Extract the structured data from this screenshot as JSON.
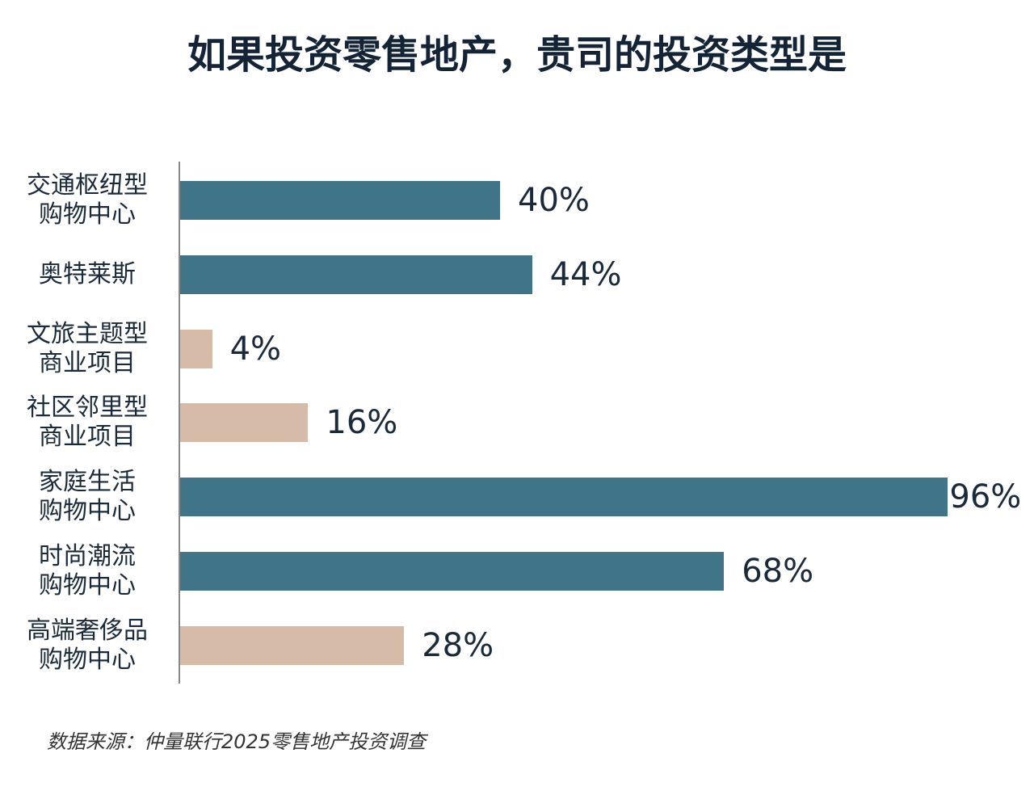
{
  "chart_data": {
    "type": "bar",
    "orientation": "horizontal",
    "title": "如果投资零售地产，贵司的投资类型是",
    "categories": [
      "交通枢纽型\n购物中心",
      "奥特莱斯",
      "文旅主题型\n商业项目",
      "社区邻里型\n商业项目",
      "家庭生活\n购物中心",
      "时尚潮流\n购物中心",
      "高端奢侈品\n购物中心"
    ],
    "values": [
      40,
      44,
      4,
      16,
      96,
      68,
      28
    ],
    "value_labels": [
      "40%",
      "44%",
      "4%",
      "16%",
      "96%",
      "68%",
      "28%"
    ],
    "colors": [
      "#3f7489",
      "#3f7489",
      "#d5bba8",
      "#d5bba8",
      "#3f7489",
      "#3f7489",
      "#d5bba8"
    ],
    "xlim": [
      0,
      100
    ],
    "source": "数据来源：仲量联行2025零售地产投资调查"
  }
}
